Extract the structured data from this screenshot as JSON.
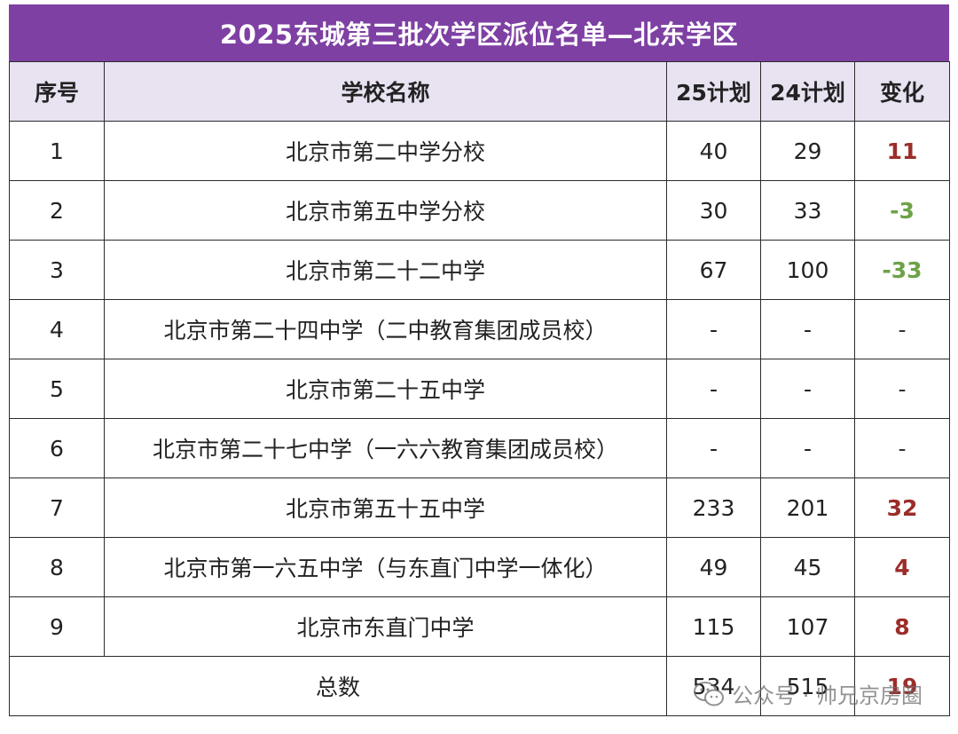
{
  "title": "2025东城第三批次学区派位名单—北东学区",
  "headers": {
    "index": "序号",
    "school": "学校名称",
    "plan25": "25计划",
    "plan24": "24计划",
    "change": "变化"
  },
  "rows": [
    {
      "index": "1",
      "school": "北京市第二中学分校",
      "plan25": "40",
      "plan24": "29",
      "change": "11",
      "trend": "pos"
    },
    {
      "index": "2",
      "school": "北京市第五中学分校",
      "plan25": "30",
      "plan24": "33",
      "change": "-3",
      "trend": "neg"
    },
    {
      "index": "3",
      "school": "北京市第二十二中学",
      "plan25": "67",
      "plan24": "100",
      "change": "-33",
      "trend": "neg"
    },
    {
      "index": "4",
      "school": "北京市第二十四中学（二中教育集团成员校）",
      "plan25": "-",
      "plan24": "-",
      "change": "-",
      "trend": "none"
    },
    {
      "index": "5",
      "school": "北京市第二十五中学",
      "plan25": "-",
      "plan24": "-",
      "change": "-",
      "trend": "none"
    },
    {
      "index": "6",
      "school": "北京市第二十七中学（一六六教育集团成员校）",
      "plan25": "-",
      "plan24": "-",
      "change": "-",
      "trend": "none"
    },
    {
      "index": "7",
      "school": "北京市第五十五中学",
      "plan25": "233",
      "plan24": "201",
      "change": "32",
      "trend": "pos"
    },
    {
      "index": "8",
      "school": "北京市第一六五中学（与东直门中学一体化）",
      "plan25": "49",
      "plan24": "45",
      "change": "4",
      "trend": "pos"
    },
    {
      "index": "9",
      "school": "北京市东直门中学",
      "plan25": "115",
      "plan24": "107",
      "change": "8",
      "trend": "pos"
    }
  ],
  "total": {
    "label": "总数",
    "plan25": "534",
    "plan24": "515",
    "change": "19"
  },
  "watermark": {
    "text": "公众号 · 帅兄京房圈",
    "icon": "wechat-icon"
  },
  "colors": {
    "title_bg": "#7e40a3",
    "header_bg": "#e9e2f1",
    "increase": "#9b2d2a",
    "decrease": "#6da248"
  }
}
